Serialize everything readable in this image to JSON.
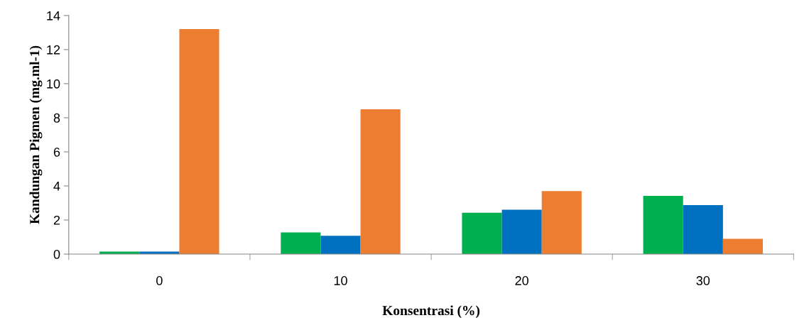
{
  "chart_data": {
    "type": "bar",
    "xlabel": "Konsentrasi (%)",
    "ylabel": "Kandungan Pigmen (mg.ml-1)",
    "categories": [
      "0",
      "10",
      "20",
      "30"
    ],
    "series": [
      {
        "color": "#00b050",
        "values": [
          0.15,
          1.27,
          2.43,
          3.42
        ]
      },
      {
        "color": "#0070c0",
        "values": [
          0.15,
          1.07,
          2.6,
          2.88
        ]
      },
      {
        "color": "#ed7d31",
        "values": [
          13.2,
          8.5,
          3.7,
          0.9
        ]
      }
    ],
    "ylim": [
      0,
      14
    ],
    "yticks": [
      0,
      2,
      4,
      6,
      8,
      10,
      12,
      14
    ],
    "grid": false,
    "legend": false
  }
}
